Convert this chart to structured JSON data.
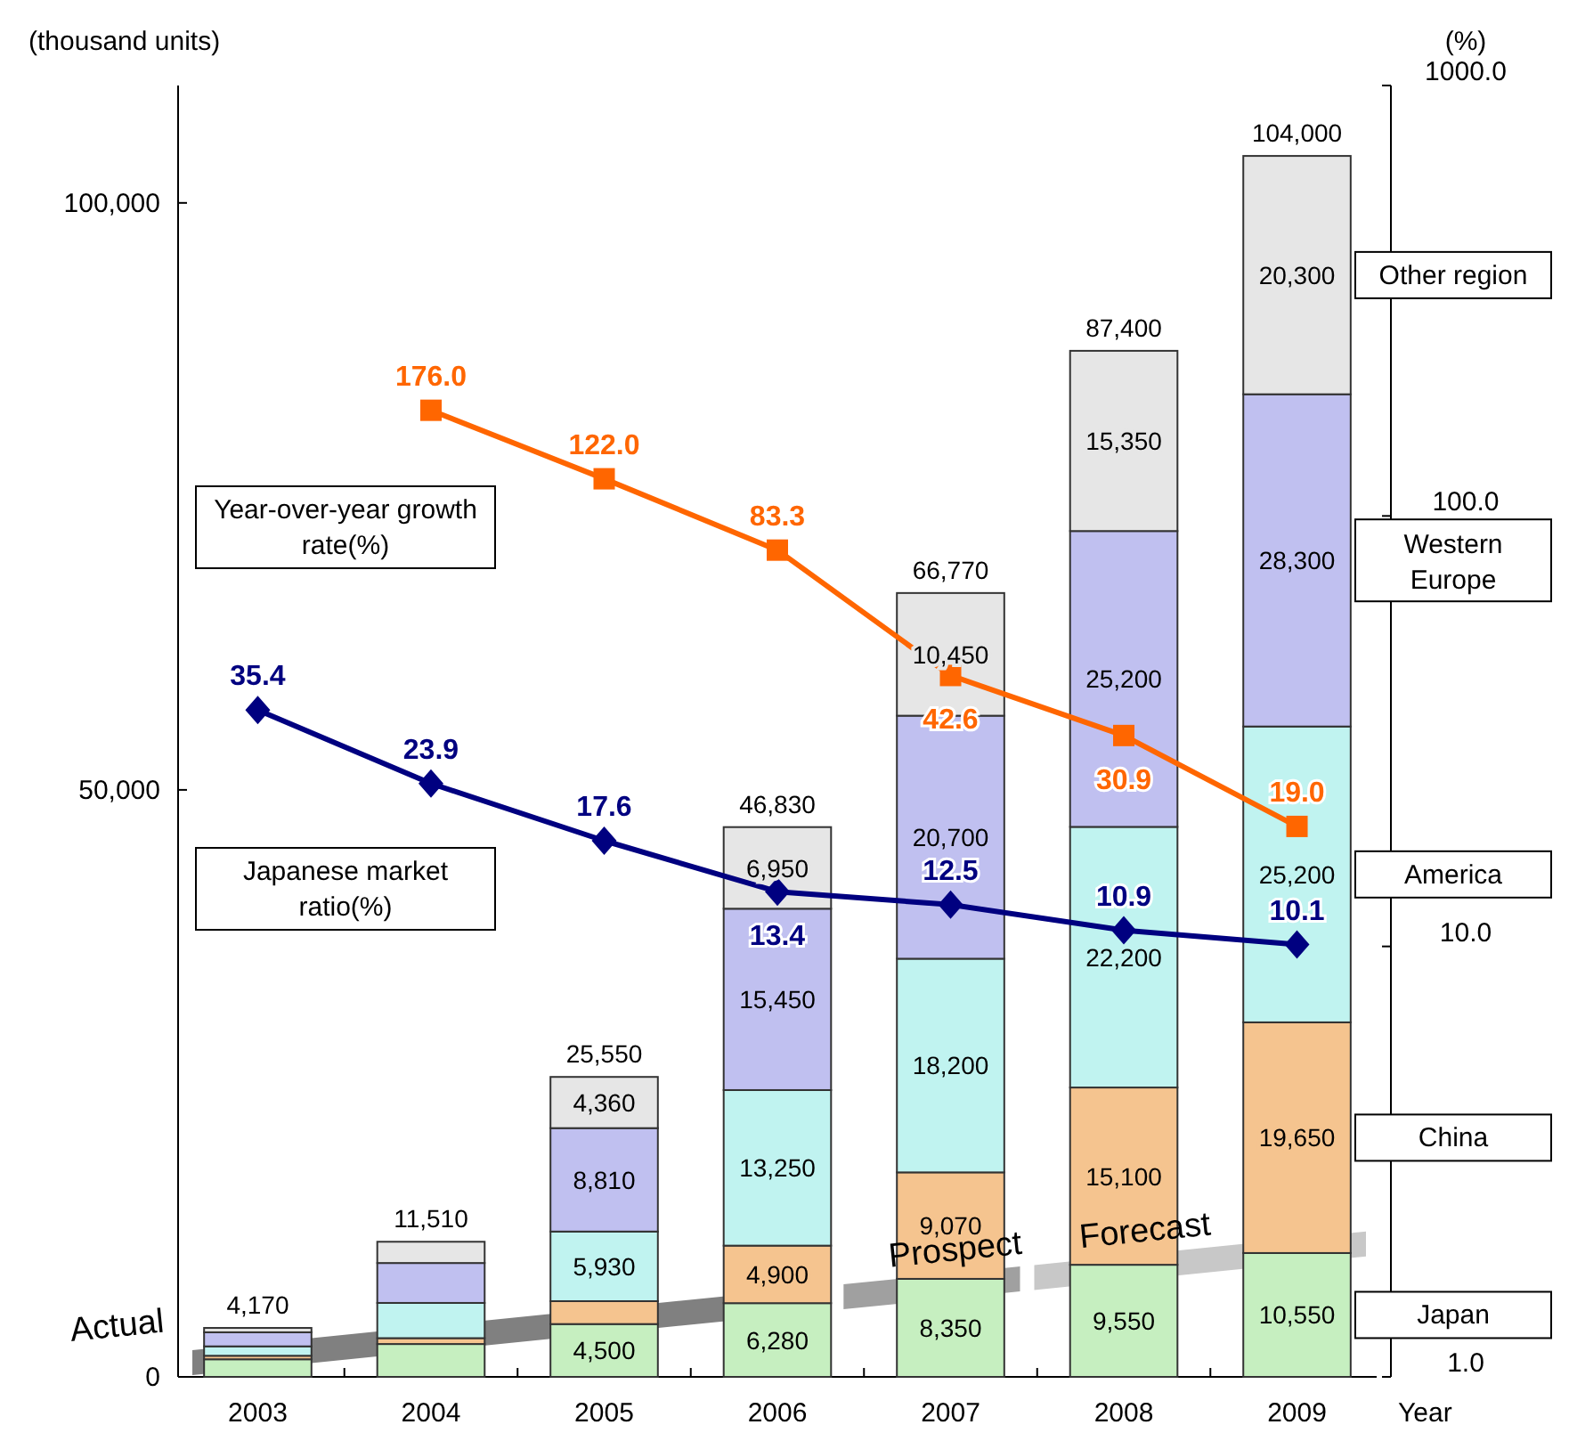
{
  "chart_data": {
    "type": "bar",
    "stacked": true,
    "categories": [
      "2003",
      "2004",
      "2005",
      "2006",
      "2007",
      "2008",
      "2009"
    ],
    "xlabel": "Year",
    "ylabel": "(thousand units)",
    "y2label": "(%)",
    "ylim": [
      0,
      110000
    ],
    "yticks": [
      {
        "value": 0,
        "label": "0"
      },
      {
        "value": 50000,
        "label": "50,000"
      },
      {
        "value": 100000,
        "label": "100,000"
      }
    ],
    "y2lim": [
      1,
      1000
    ],
    "y2ticks": [
      {
        "value": 1,
        "label": "1.0"
      },
      {
        "value": 10,
        "label": "10.0"
      },
      {
        "value": 100,
        "label": "100.0"
      },
      {
        "value": 1000,
        "label": "1000.0"
      }
    ],
    "log": "y2",
    "grid": false,
    "legend": "right",
    "series": [
      {
        "name": "Japan",
        "color": "#c6efc0",
        "values": [
          1500,
          2800,
          4500,
          6280,
          8350,
          9550,
          10550
        ],
        "value_labels": [
          null,
          null,
          "4,500",
          "6,280",
          "8,350",
          "9,550",
          "10,550"
        ]
      },
      {
        "name": "China",
        "color": "#f5c48f",
        "values": [
          300,
          500,
          1950,
          4900,
          9070,
          15100,
          19650
        ],
        "value_labels": [
          null,
          null,
          null,
          "4,900",
          "9,070",
          "15,100",
          "19,650"
        ]
      },
      {
        "name": "America",
        "color": "#c0f3f0",
        "values": [
          800,
          3000,
          5930,
          13250,
          18200,
          22200,
          25200
        ],
        "value_labels": [
          null,
          null,
          "5,930",
          "13,250",
          "18,200",
          "22,200",
          "25,200"
        ]
      },
      {
        "name": "Western Europe",
        "color": "#c0c0f0",
        "values": [
          1200,
          3400,
          8810,
          15450,
          20700,
          25200,
          28300
        ],
        "value_labels": [
          null,
          null,
          "8,810",
          "15,450",
          "20,700",
          "25,200",
          "28,300"
        ]
      },
      {
        "name": "Other region",
        "color": "#e6e6e6",
        "values": [
          370,
          1810,
          4360,
          6950,
          10450,
          15350,
          20300
        ],
        "value_labels": [
          null,
          null,
          "4,360",
          "6,950",
          "10,450",
          "15,350",
          "20,300"
        ]
      },
      {
        "name": "Year-over-year growth rate(%)",
        "type": "line",
        "axis": "y2",
        "marker": "square",
        "color": "#ff6600",
        "values": [
          null,
          176.0,
          122.0,
          83.3,
          42.6,
          30.9,
          19.0
        ],
        "value_labels": [
          null,
          "176.0",
          "122.0",
          "83.3",
          "42.6",
          "30.9",
          "19.0"
        ]
      },
      {
        "name": "Japanese market ratio(%)",
        "type": "line",
        "axis": "y2",
        "marker": "diamond",
        "color": "#000080",
        "values": [
          35.4,
          23.9,
          17.6,
          13.4,
          12.5,
          10.9,
          10.1
        ],
        "value_labels": [
          "35.4",
          "23.9",
          "17.6",
          "13.4",
          "12.5",
          "10.9",
          "10.1"
        ]
      }
    ],
    "totals": [
      "4,170",
      "11,510",
      "25,550",
      "46,830",
      "66,770",
      "87,400",
      "104,000"
    ],
    "annotations": [
      "Actual",
      "Prospect",
      "Forecast"
    ]
  }
}
